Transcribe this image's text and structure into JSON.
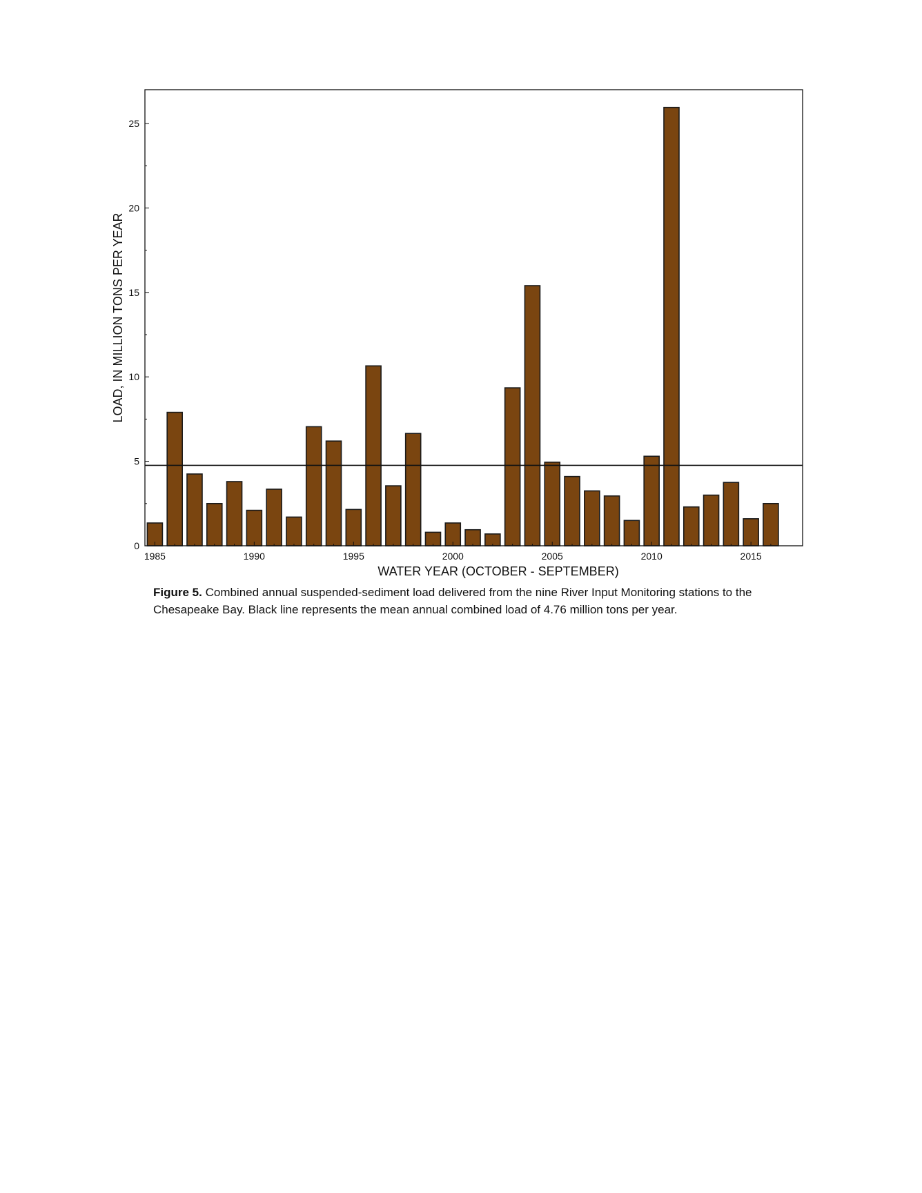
{
  "chart_data": {
    "type": "bar",
    "title": "",
    "xlabel": "WATER YEAR (OCTOBER - SEPTEMBER)",
    "ylabel": "LOAD, IN MILLION TONS PER YEAR",
    "categories": [
      1985,
      1986,
      1987,
      1988,
      1989,
      1990,
      1991,
      1992,
      1993,
      1994,
      1995,
      1996,
      1997,
      1998,
      1999,
      2000,
      2001,
      2002,
      2003,
      2004,
      2005,
      2006,
      2007,
      2008,
      2009,
      2010,
      2011,
      2012,
      2013,
      2014,
      2015,
      2016
    ],
    "values": [
      1.35,
      7.9,
      4.25,
      2.5,
      3.8,
      2.1,
      3.35,
      1.7,
      7.05,
      6.2,
      2.15,
      10.65,
      3.55,
      6.65,
      0.8,
      1.35,
      0.95,
      0.7,
      9.35,
      15.4,
      4.95,
      4.1,
      3.25,
      2.95,
      1.5,
      5.3,
      25.95,
      2.3,
      3.0,
      3.75,
      1.6,
      2.5
    ],
    "xticks": [
      "1985",
      "1990",
      "1995",
      "2000",
      "2005",
      "2010",
      "2015"
    ],
    "xtick_values": [
      1985,
      1990,
      1995,
      2000,
      2005,
      2010,
      2015
    ],
    "yticks": [
      "0",
      "5",
      "10",
      "15",
      "20",
      "25"
    ],
    "ytick_values": [
      0,
      5,
      10,
      15,
      20,
      25
    ],
    "ylim": [
      0,
      27
    ],
    "xlim": [
      1984.5,
      2017.6
    ],
    "mean_line": 4.76,
    "bar_color": "#7a4510",
    "bar_edge_color": "#1a1a1a",
    "grid": false,
    "legend": "none"
  },
  "caption": {
    "label": "Figure 5.",
    "text": " Combined annual suspended-sediment load delivered from the nine River Input Monitoring stations to the Chesapeake Bay.  Black line represents the mean annual combined load of 4.76 million tons per year."
  }
}
